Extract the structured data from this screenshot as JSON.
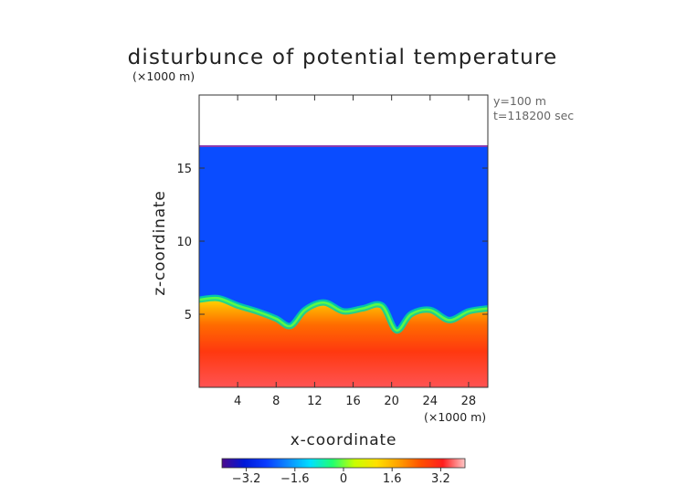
{
  "chart_data": {
    "type": "heatmap",
    "title": "disturbunce of potential temperature",
    "xlabel": "x-coordinate",
    "ylabel": "z-coordinate",
    "x_unit": "(×1000 m)",
    "y_unit": "(×1000 m)",
    "annotation_lines": [
      "y=100 m",
      "t=118200 sec"
    ],
    "xlim": [
      0,
      30
    ],
    "ylim": [
      0,
      20
    ],
    "x_ticks": [
      4,
      8,
      12,
      16,
      20,
      24,
      28
    ],
    "y_ticks": [
      5,
      10,
      15
    ],
    "grid": false,
    "field": {
      "domain_top_km": 16.5,
      "upper_value": -2.4,
      "lower_surface_value": 3.5,
      "interface_height_km": [
        {
          "x": 0,
          "z": 6.0
        },
        {
          "x": 2,
          "z": 6.1
        },
        {
          "x": 4,
          "z": 5.6
        },
        {
          "x": 6,
          "z": 5.2
        },
        {
          "x": 8,
          "z": 4.7
        },
        {
          "x": 9.5,
          "z": 4.2
        },
        {
          "x": 11,
          "z": 5.3
        },
        {
          "x": 13,
          "z": 5.8
        },
        {
          "x": 15,
          "z": 5.2
        },
        {
          "x": 17,
          "z": 5.4
        },
        {
          "x": 19,
          "z": 5.6
        },
        {
          "x": 20.5,
          "z": 3.9
        },
        {
          "x": 22,
          "z": 5.0
        },
        {
          "x": 24,
          "z": 5.3
        },
        {
          "x": 26,
          "z": 4.6
        },
        {
          "x": 28,
          "z": 5.2
        },
        {
          "x": 30,
          "z": 5.4
        }
      ]
    },
    "colorbar": {
      "min": -4.0,
      "max": 4.0,
      "ticks": [
        "−3.2",
        "−1.6",
        "0",
        "1.6",
        "3.2"
      ],
      "tick_values": [
        -3.2,
        -1.6,
        0,
        1.6,
        3.2
      ],
      "colors": [
        "#4b0a8c",
        "#0018d8",
        "#0a3cff",
        "#0c8cff",
        "#00e0ff",
        "#20ff70",
        "#c8ff00",
        "#ffe000",
        "#ffa000",
        "#ff5000",
        "#ff1e1e",
        "#ffc8c8"
      ]
    }
  }
}
